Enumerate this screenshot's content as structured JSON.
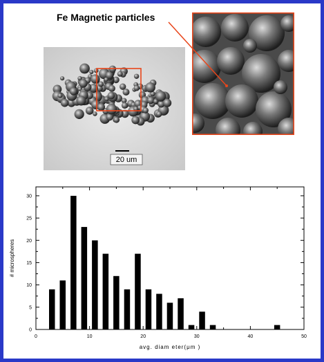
{
  "annotation": "Fe Magnetic particles",
  "scale_bar_label": "20 um",
  "accent_color": "#e8461b",
  "frame_color": "#2a39c8",
  "chart_data": {
    "type": "bar",
    "x": [
      3,
      5,
      7,
      9,
      11,
      13,
      15,
      17,
      19,
      21,
      23,
      25,
      27,
      29,
      31,
      33,
      45
    ],
    "values": [
      9,
      11,
      30,
      23,
      20,
      17,
      12,
      9,
      17,
      9,
      8,
      6,
      7,
      1,
      4,
      1,
      1
    ],
    "xlabel": "avg. diam eter(μm )",
    "ylabel": "# microspheres",
    "xlim": [
      0,
      50
    ],
    "ylim": [
      0,
      32
    ],
    "xticks": [
      0,
      10,
      20,
      30,
      40,
      50
    ],
    "yticks": [
      0,
      5,
      10,
      15,
      20,
      25,
      30
    ],
    "bar_color": "#000000",
    "grid": false
  }
}
